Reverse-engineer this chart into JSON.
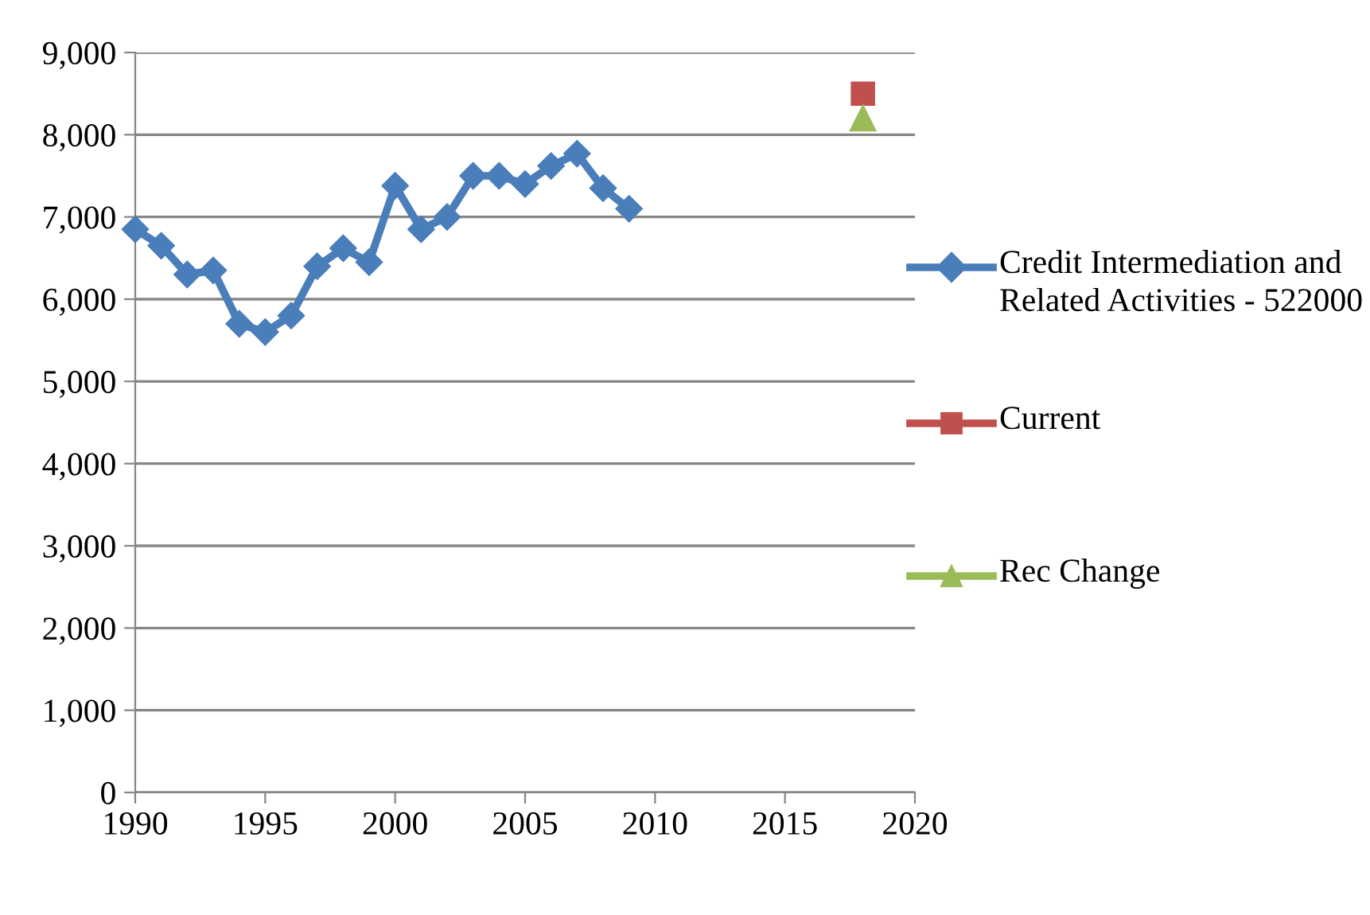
{
  "chart_data": {
    "type": "line",
    "x": [
      1990,
      1991,
      1992,
      1993,
      1994,
      1995,
      1996,
      1997,
      1998,
      1999,
      2000,
      2001,
      2002,
      2003,
      2004,
      2005,
      2006,
      2007,
      2008,
      2009
    ],
    "series": [
      {
        "name": "Credit Intermediation and Related Activities - 522000",
        "color": "#4a7ebb",
        "marker": "diamond",
        "values": [
          6850,
          6650,
          6300,
          6350,
          5700,
          5600,
          5800,
          6400,
          6620,
          6450,
          7380,
          6850,
          7000,
          7500,
          7500,
          7400,
          7620,
          7770,
          7350,
          7100
        ]
      },
      {
        "name": "Current",
        "color": "#c0504d",
        "marker": "square",
        "x": [
          2018
        ],
        "values": [
          8500
        ]
      },
      {
        "name": "Rec Change",
        "color": "#9bbb59",
        "marker": "triangle",
        "x": [
          2018
        ],
        "values": [
          8200
        ]
      }
    ],
    "xlim": [
      1990,
      2020
    ],
    "xticks": [
      1990,
      1995,
      2000,
      2005,
      2010,
      2015,
      2020
    ],
    "ylim": [
      0,
      9000
    ],
    "yticks": [
      {
        "value": 0,
        "label": "0"
      },
      {
        "value": 1000,
        "label": "1,000"
      },
      {
        "value": 2000,
        "label": "2,000"
      },
      {
        "value": 3000,
        "label": "3,000"
      },
      {
        "value": 4000,
        "label": "4,000"
      },
      {
        "value": 5000,
        "label": "5,000"
      },
      {
        "value": 6000,
        "label": "6,000"
      },
      {
        "value": 7000,
        "label": "7,000"
      },
      {
        "value": 8000,
        "label": "8,000"
      },
      {
        "value": 9000,
        "label": "9,000"
      }
    ],
    "grid": "y",
    "legend": "right"
  }
}
